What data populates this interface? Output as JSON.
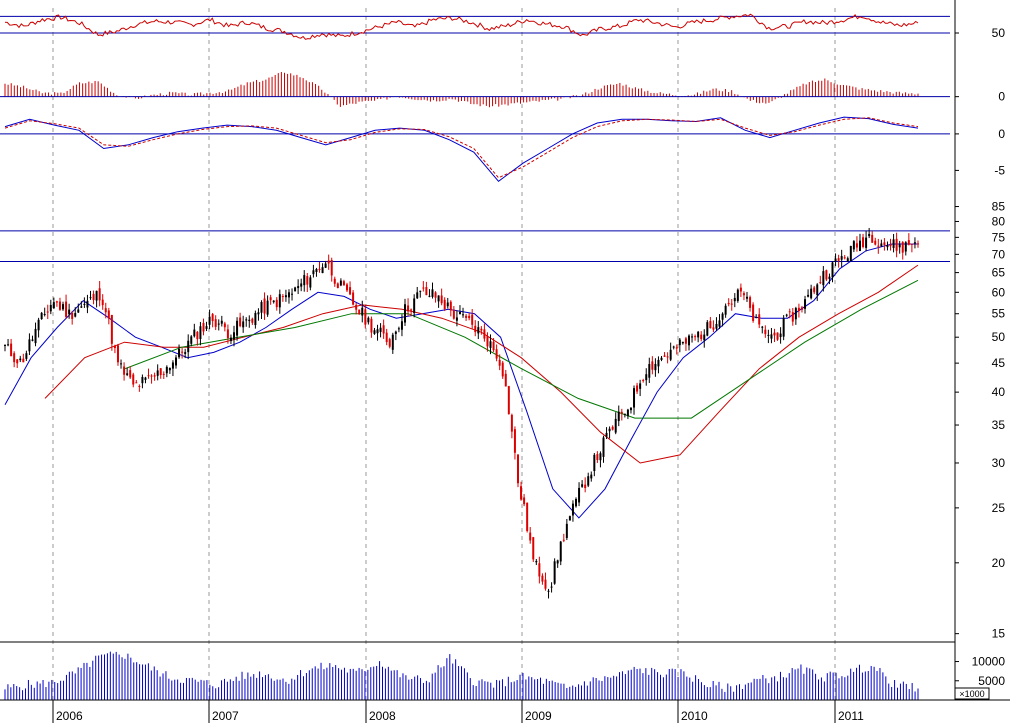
{
  "chart_data": {
    "type": "stock-chart",
    "x_axis": {
      "labels": [
        "2006",
        "2007",
        "2008",
        "2009",
        "2010",
        "2011"
      ],
      "range": [
        "2005-09",
        "2011-07"
      ],
      "vertical_grid": "dashed"
    },
    "panels": [
      {
        "name": "rsi",
        "type": "line",
        "color": "#cc0000",
        "y_tick_labels": [
          "50"
        ],
        "reference_lines": [
          70,
          50
        ],
        "range": [
          20,
          80
        ],
        "series": [
          {
            "values": [
              63,
              58,
              66,
              69,
              62,
              48,
              52,
              60,
              64,
              63,
              60,
              66,
              58,
              63,
              56,
              52,
              44,
              49,
              46,
              51,
              57,
              63,
              57,
              66,
              68,
              63,
              55,
              59,
              66,
              61,
              58,
              47,
              55,
              58,
              66,
              62,
              57,
              63,
              66,
              70,
              72,
              56,
              58,
              64,
              62,
              66,
              71,
              63,
              59,
              62
            ]
          }
        ]
      },
      {
        "name": "momentum-histogram",
        "type": "bar",
        "color": "#cc0000",
        "y_tick_labels": [
          "0"
        ],
        "baseline": 0,
        "range": [
          -4,
          8
        ],
        "values": [
          3.5,
          2.5,
          1.0,
          0.8,
          3.5,
          4.0,
          0.5,
          -0.5,
          0.5,
          1.0,
          0.5,
          1.0,
          1.5,
          3.5,
          4.5,
          6.5,
          5.0,
          2.0,
          -2.5,
          -1.5,
          -1.0,
          0.2,
          -0.5,
          -1.0,
          -0.5,
          -1.8,
          -2.5,
          -2.0,
          -1.5,
          -1.0,
          -0.5,
          0.5,
          2.5,
          3.5,
          2.0,
          1.0,
          0.5,
          0.5,
          2.0,
          1.5,
          -1.0,
          -1.8,
          1.0,
          3.5,
          4.5,
          3.0,
          2.0,
          1.5,
          1.0,
          0.8
        ]
      },
      {
        "name": "macd",
        "type": "line",
        "y_tick_labels": [
          "0",
          "-5"
        ],
        "reference_lines": [
          0
        ],
        "range": [
          -7,
          3
        ],
        "series": [
          {
            "style": "solid",
            "color": "#0000cc",
            "values": [
              1.0,
              2.0,
              1.2,
              0.5,
              -2.0,
              -1.5,
              -0.5,
              0.3,
              0.8,
              1.2,
              1.0,
              0.5,
              -0.5,
              -1.5,
              -0.5,
              0.5,
              0.8,
              0.5,
              -0.8,
              -2.5,
              -6.5,
              -4.0,
              -2.0,
              0.0,
              1.5,
              2.0,
              2.0,
              1.8,
              1.7,
              2.2,
              0.5,
              -0.5,
              0.5,
              1.5,
              2.3,
              2.1,
              1.3,
              0.8
            ]
          },
          {
            "style": "dashed",
            "color": "#cc0000",
            "values": [
              0.8,
              1.8,
              1.4,
              0.8,
              -1.5,
              -1.7,
              -0.8,
              0.0,
              0.6,
              1.0,
              1.1,
              0.8,
              -0.2,
              -1.2,
              -0.8,
              0.2,
              0.7,
              0.6,
              -0.4,
              -2.0,
              -6.0,
              -4.5,
              -2.5,
              -0.5,
              1.0,
              1.8,
              2.0,
              1.9,
              1.7,
              2.0,
              0.8,
              -0.2,
              0.3,
              1.2,
              2.0,
              2.2,
              1.5,
              1.0
            ]
          }
        ]
      },
      {
        "name": "price",
        "type": "candlestick",
        "scale": "log",
        "y_tick_labels": [
          "15",
          "20",
          "25",
          "30",
          "35",
          "40",
          "45",
          "50",
          "55",
          "60",
          "65",
          "70",
          "75",
          "80",
          "85"
        ],
        "ylim": [
          14.5,
          88
        ],
        "reference_lines": [
          77,
          68
        ],
        "up_color": "#000000",
        "down_color": "#dd0000",
        "close": [
          48,
          45,
          52,
          58,
          55,
          57,
          60,
          45,
          41,
          42,
          44,
          47,
          51,
          54,
          51,
          53,
          56,
          58,
          60,
          64,
          68,
          61,
          56,
          52,
          49,
          56,
          60,
          59,
          55,
          53,
          50,
          45,
          28,
          20,
          18,
          23,
          27,
          31,
          35,
          38,
          44,
          46,
          48,
          50,
          52,
          57,
          60,
          52,
          50,
          54,
          58,
          64,
          68,
          72,
          76,
          73,
          72,
          74
        ],
        "moving_averages": [
          {
            "color": "#0000cc",
            "values": [
              38,
              46,
              52,
              58,
              54,
              50,
              48,
              46,
              47,
              49,
              52,
              56,
              60,
              59,
              56,
              54,
              55,
              56,
              55,
              50,
              37,
              27,
              24,
              27,
              33,
              40,
              46,
              50,
              55,
              54,
              54,
              58,
              66,
              71,
              73,
              73
            ]
          },
          {
            "color": "#cc0000",
            "values": [
              39,
              46,
              49,
              48,
              48,
              50,
              52,
              55,
              57,
              56,
              54,
              51,
              46,
              40,
              34,
              30,
              31,
              37,
              44,
              50,
              55,
              60,
              67
            ]
          },
          {
            "color": "#007700",
            "values": [
              44,
              48,
              50,
              52,
              55,
              55,
              50,
              44,
              39,
              36,
              36,
              42,
              49,
              56,
              63
            ]
          }
        ]
      },
      {
        "name": "volume",
        "type": "bar",
        "color": "#0000cc",
        "y_tick_labels": [
          "10000",
          "5000"
        ],
        "unit_label": "×1000",
        "ylim": [
          0,
          13000
        ],
        "values": [
          3000,
          4000,
          4500,
          7000,
          11000,
          12000,
          9000,
          6000,
          5000,
          4000,
          6000,
          7000,
          5000,
          8000,
          9000,
          7000,
          10000,
          6000,
          5000,
          11000,
          5000,
          4000,
          6000,
          5000,
          3000,
          5000,
          6000,
          8000,
          7000,
          7000,
          4000,
          3000,
          5000,
          6000,
          8000,
          6000,
          7000,
          9000,
          4000,
          3000
        ]
      }
    ]
  }
}
